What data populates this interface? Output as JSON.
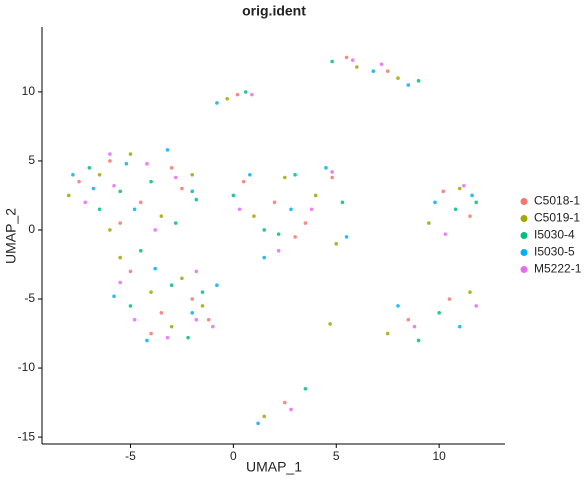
{
  "chart_data": {
    "type": "scatter",
    "title": "orig.ident",
    "x_label": "UMAP_1",
    "y_label": "UMAP_2",
    "xlim": [
      -9.3,
      13.2
    ],
    "ylim": [
      -15.5,
      14.7
    ],
    "xticks": [
      -5,
      0,
      5,
      10
    ],
    "yticks": [
      -15,
      -10,
      -5,
      0,
      5,
      10
    ],
    "grid": false,
    "legend": "right",
    "series": [
      {
        "name": "C5018-1",
        "color": "#F8766D",
        "x": [
          -7.5,
          -6,
          -4.5,
          -3,
          -5.5,
          -2.5,
          -5,
          -3.5,
          -2,
          -4,
          -1.2,
          0.5,
          2,
          3.5,
          4.8,
          5.5,
          7.5,
          10.2,
          11.5,
          8.5,
          10.5,
          2.5,
          0.2,
          3
        ],
        "values": [
          3.5,
          5,
          2,
          4.5,
          0.5,
          3,
          -3,
          -6,
          -5,
          -7.5,
          -6.5,
          3.5,
          2,
          0.5,
          3.8,
          12.5,
          11.5,
          2.8,
          1,
          -6.5,
          -5,
          -12.5,
          9.8,
          -0.5
        ]
      },
      {
        "name": "C5019-1",
        "color": "#A3A500",
        "x": [
          -8,
          -6.5,
          -5,
          -3.5,
          -2,
          -6,
          -5.5,
          -4,
          -2.5,
          -3,
          -1.5,
          1,
          2.5,
          4,
          5,
          6,
          8,
          9.5,
          11,
          7.5,
          11.5,
          1.5,
          -0.3,
          4.7
        ],
        "values": [
          2.5,
          4,
          5.5,
          1,
          4,
          0,
          -2,
          -4.5,
          -3.5,
          -7,
          -5.5,
          1,
          3.8,
          2.5,
          -1,
          11.8,
          11,
          0.5,
          3,
          -7.5,
          -4.5,
          -13.5,
          9.5,
          -6.8
        ]
      },
      {
        "name": "I5030-4",
        "color": "#00BF7D",
        "x": [
          -7,
          -5.5,
          -4,
          -2.8,
          -6.5,
          -1.8,
          -4.5,
          -3,
          -5,
          -1.5,
          -2.2,
          0,
          1.5,
          3,
          5.3,
          4.8,
          9,
          10.8,
          11.8,
          9,
          10,
          3.5,
          0.6,
          2.2
        ],
        "values": [
          4.5,
          2.8,
          3.5,
          0.5,
          1.5,
          2.2,
          -1.5,
          -4,
          -5.5,
          -4.5,
          -7.8,
          2.5,
          0,
          4,
          2,
          12.2,
          10.8,
          1.5,
          2,
          -8,
          -6,
          -11.5,
          10,
          -0.3
        ]
      },
      {
        "name": "I5030-5",
        "color": "#00B0F6",
        "x": [
          -6.8,
          -4.8,
          -3.2,
          -2,
          -7.8,
          -5.2,
          -5.8,
          -3.8,
          -2,
          -4.2,
          -0.8,
          0.8,
          2.8,
          4.5,
          1.5,
          6.8,
          8.5,
          9.8,
          11.6,
          8,
          11,
          1.2,
          -0.8,
          5.5
        ],
        "values": [
          3,
          1.5,
          5.8,
          2.8,
          4,
          4.8,
          -4.8,
          -2.8,
          -6,
          -8,
          -4,
          4,
          1.5,
          4.5,
          -2,
          11.5,
          10.5,
          2,
          2.5,
          -5.5,
          -7,
          -14,
          9.2,
          -0.5
        ]
      },
      {
        "name": "M5222-1",
        "color": "#E76BF3",
        "x": [
          -7.2,
          -5.8,
          -4.2,
          -2.8,
          -6,
          -3.8,
          -4.8,
          -3.2,
          -1.8,
          -5.5,
          -1,
          0.3,
          2.2,
          3.8,
          4.8,
          5.8,
          7.2,
          10.3,
          11.2,
          8.8,
          11.8,
          2.8,
          0.9,
          -1.8
        ],
        "values": [
          2,
          3.2,
          4.8,
          3.8,
          5.5,
          0,
          -6.5,
          -7.8,
          -3,
          -3.8,
          -7,
          1.5,
          -1.5,
          1.5,
          4.2,
          12.3,
          12,
          -0.3,
          3.2,
          -7,
          -5.5,
          -13,
          9.8,
          -6.5
        ]
      }
    ]
  }
}
